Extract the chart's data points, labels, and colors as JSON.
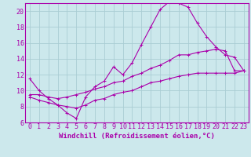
{
  "xlabel": "Windchill (Refroidissement éolien,°C)",
  "bg_color": "#cce8ec",
  "grid_color": "#aacdd4",
  "line_color": "#aa00aa",
  "marker": "+",
  "xlim": [
    -0.5,
    23.5
  ],
  "ylim": [
    6,
    21
  ],
  "yticks": [
    6,
    8,
    10,
    12,
    14,
    16,
    18,
    20
  ],
  "xticks": [
    0,
    1,
    2,
    3,
    4,
    5,
    6,
    7,
    8,
    9,
    10,
    11,
    12,
    13,
    14,
    15,
    16,
    17,
    18,
    19,
    20,
    21,
    22,
    23
  ],
  "line1_x": [
    0,
    1,
    2,
    3,
    4,
    5,
    6,
    7,
    8,
    9,
    10,
    11,
    12,
    13,
    14,
    15,
    16,
    17,
    18,
    19,
    20,
    21,
    22,
    23
  ],
  "line1_y": [
    11.5,
    10.0,
    9.0,
    8.2,
    7.2,
    6.5,
    9.2,
    10.5,
    11.2,
    13.0,
    12.0,
    13.5,
    15.8,
    18.0,
    20.2,
    21.2,
    21.0,
    20.5,
    18.5,
    16.8,
    15.5,
    14.5,
    14.2,
    12.5
  ],
  "line2_x": [
    0,
    1,
    2,
    3,
    4,
    5,
    6,
    7,
    8,
    9,
    10,
    11,
    12,
    13,
    14,
    15,
    16,
    17,
    18,
    19,
    20,
    21,
    22,
    23
  ],
  "line2_y": [
    9.5,
    9.5,
    9.2,
    9.0,
    9.2,
    9.5,
    9.8,
    10.2,
    10.5,
    11.0,
    11.2,
    11.8,
    12.2,
    12.8,
    13.2,
    13.8,
    14.5,
    14.5,
    14.8,
    15.0,
    15.2,
    15.0,
    12.5,
    12.5
  ],
  "line3_x": [
    0,
    1,
    2,
    3,
    4,
    5,
    6,
    7,
    8,
    9,
    10,
    11,
    12,
    13,
    14,
    15,
    16,
    17,
    18,
    19,
    20,
    21,
    22,
    23
  ],
  "line3_y": [
    9.2,
    8.8,
    8.5,
    8.2,
    8.0,
    7.8,
    8.2,
    8.8,
    9.0,
    9.5,
    9.8,
    10.0,
    10.5,
    11.0,
    11.2,
    11.5,
    11.8,
    12.0,
    12.2,
    12.2,
    12.2,
    12.2,
    12.2,
    12.5
  ],
  "tick_fontsize": 6,
  "label_fontsize": 6.5,
  "linewidth": 0.8,
  "markersize": 3,
  "markeredgewidth": 0.7
}
